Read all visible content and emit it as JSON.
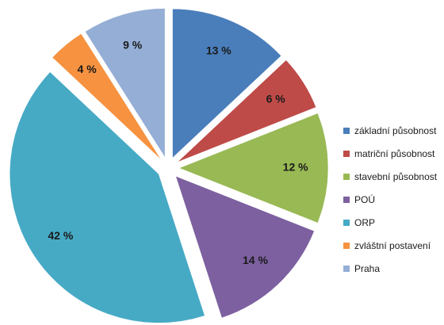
{
  "chart_data": {
    "type": "pie",
    "title": "",
    "exploded": true,
    "categories": [
      "základní působnost",
      "matriční působnost",
      "stavební působnost",
      "POÚ",
      "ORP",
      "zvláštní postavení",
      "Praha"
    ],
    "values": [
      13,
      6,
      12,
      14,
      42,
      4,
      9
    ],
    "value_labels": [
      "13 %",
      "6 %",
      "12 %",
      "14 %",
      "42 %",
      "4 %",
      "9 %"
    ],
    "colors": [
      "#4a7ebb",
      "#be4b48",
      "#98b954",
      "#7d60a0",
      "#46aac5",
      "#f69240",
      "#94aed6"
    ],
    "legend_position": "right"
  }
}
